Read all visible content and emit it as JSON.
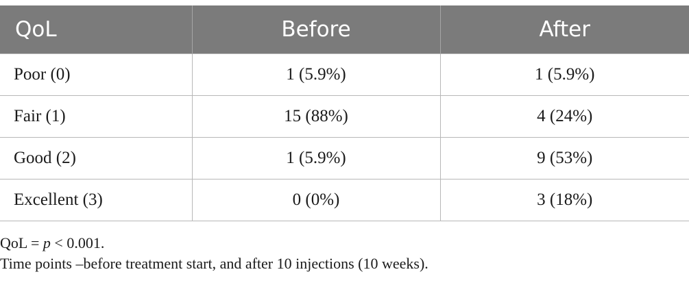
{
  "table": {
    "headers": [
      "QoL",
      "Before",
      "After"
    ],
    "rows": [
      {
        "label": "Poor (0)",
        "before": "1 (5.9%)",
        "after": "1 (5.9%)"
      },
      {
        "label": "Fair (1)",
        "before": "15 (88%)",
        "after": "4 (24%)"
      },
      {
        "label": "Good (2)",
        "before": "1 (5.9%)",
        "after": "9 (53%)"
      },
      {
        "label": "Excellent (3)",
        "before": "0 (0%)",
        "after": "3 (18%)"
      }
    ]
  },
  "footnotes": {
    "line1_prefix": "QoL = ",
    "line1_p": "p",
    "line1_suffix": " < 0.001.",
    "line2": "Time points –before treatment start, and after 10 injections (10 weeks)."
  },
  "colors": {
    "header_bg": "#7b7b7b",
    "header_text": "#ffffff",
    "grid_line": "#b7b7b7"
  }
}
